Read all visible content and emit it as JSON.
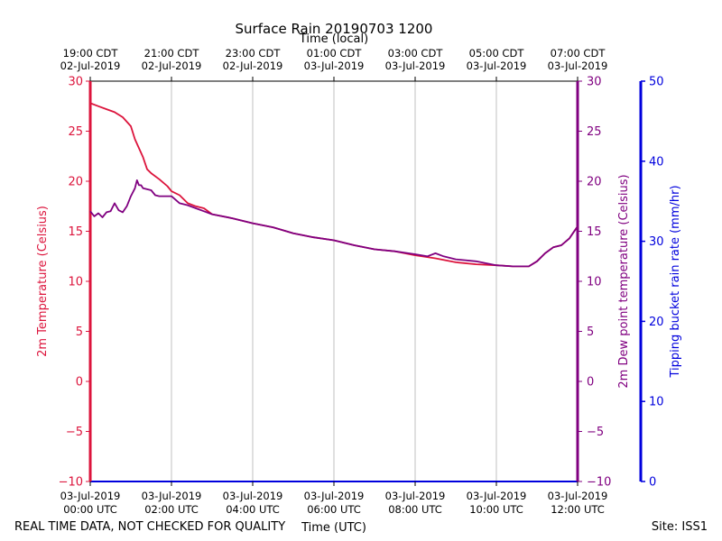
{
  "chart_data": {
    "type": "line",
    "title": "Surface Rain 20190703 1200",
    "top_axis_label": "Time (local)",
    "xlabel": "Time (UTC)",
    "ylabel_left": "2m Temperature (Celsius)",
    "ylabel_right": "2m Dew point temperature (Celsius)",
    "ylabel_far_right": "Tipping bucket rain rate (mm/hr)",
    "footer_left": "REAL TIME DATA, NOT CHECKED FOR QUALITY",
    "footer_right": "Site: ISS1",
    "xlim_hours_utc": [
      0,
      12
    ],
    "ylim_temperature": [
      -10,
      30
    ],
    "ylim_rain": [
      0,
      50
    ],
    "grid": "vertical",
    "x_ticks_utc": [
      {
        "hour": 0,
        "line1": "03-Jul-2019",
        "line2": "00:00 UTC"
      },
      {
        "hour": 2,
        "line1": "03-Jul-2019",
        "line2": "02:00 UTC"
      },
      {
        "hour": 4,
        "line1": "03-Jul-2019",
        "line2": "04:00 UTC"
      },
      {
        "hour": 6,
        "line1": "03-Jul-2019",
        "line2": "06:00 UTC"
      },
      {
        "hour": 8,
        "line1": "03-Jul-2019",
        "line2": "08:00 UTC"
      },
      {
        "hour": 10,
        "line1": "03-Jul-2019",
        "line2": "10:00 UTC"
      },
      {
        "hour": 12,
        "line1": "03-Jul-2019",
        "line2": "12:00 UTC"
      }
    ],
    "x_ticks_local": [
      {
        "hour": 0,
        "line1": "19:00 CDT",
        "line2": "02-Jul-2019"
      },
      {
        "hour": 2,
        "line1": "21:00 CDT",
        "line2": "02-Jul-2019"
      },
      {
        "hour": 4,
        "line1": "23:00 CDT",
        "line2": "02-Jul-2019"
      },
      {
        "hour": 6,
        "line1": "01:00 CDT",
        "line2": "03-Jul-2019"
      },
      {
        "hour": 8,
        "line1": "03:00 CDT",
        "line2": "03-Jul-2019"
      },
      {
        "hour": 10,
        "line1": "05:00 CDT",
        "line2": "03-Jul-2019"
      },
      {
        "hour": 12,
        "line1": "07:00 CDT",
        "line2": "03-Jul-2019"
      }
    ],
    "y_ticks_temperature": [
      30,
      25,
      20,
      15,
      10,
      5,
      0,
      -5,
      -10
    ],
    "y_ticks_rain": [
      50,
      40,
      30,
      20,
      10,
      0
    ],
    "colors": {
      "temperature": "#dc143c",
      "dewpoint": "#800080",
      "rain": "#0000dd"
    },
    "series": [
      {
        "key": "temperature",
        "x": [
          0,
          0.2,
          0.4,
          0.6,
          0.8,
          1.0,
          1.1,
          1.2,
          1.3,
          1.4,
          1.5,
          1.7,
          1.9,
          2.0,
          2.2,
          2.4,
          2.6,
          2.8,
          3.0,
          3.5,
          4.0,
          4.5,
          5.0,
          5.5,
          6.0,
          6.5,
          7.0,
          7.5,
          8.0,
          8.5,
          9.0,
          9.5,
          10.0,
          10.4,
          10.6,
          10.8,
          11.0,
          11.2,
          11.4,
          11.6,
          11.8,
          12.0
        ],
        "values": [
          27.8,
          27.5,
          27.2,
          26.9,
          26.4,
          25.5,
          24.2,
          23.3,
          22.4,
          21.2,
          20.8,
          20.2,
          19.5,
          19.0,
          18.6,
          17.8,
          17.5,
          17.3,
          16.7,
          16.3,
          15.8,
          15.4,
          14.8,
          14.4,
          14.1,
          13.6,
          13.2,
          13.0,
          12.6,
          12.3,
          11.9,
          11.7,
          11.6,
          11.5,
          11.5,
          11.5,
          12.0,
          12.8,
          13.4,
          13.6,
          14.3,
          15.5
        ]
      },
      {
        "key": "dewpoint",
        "x": [
          0,
          0.1,
          0.2,
          0.3,
          0.4,
          0.5,
          0.6,
          0.7,
          0.8,
          0.9,
          1.0,
          1.1,
          1.15,
          1.2,
          1.25,
          1.3,
          1.4,
          1.5,
          1.6,
          1.7,
          1.8,
          2.0,
          2.2,
          2.4,
          2.6,
          2.8,
          3.0,
          3.5,
          4.0,
          4.5,
          5.0,
          5.5,
          6.0,
          6.5,
          7.0,
          7.5,
          8.0,
          8.3,
          8.5,
          8.7,
          9.0,
          9.5,
          10.0,
          10.4,
          10.6,
          10.8,
          11.0,
          11.2,
          11.4,
          11.6,
          11.8,
          12.0
        ],
        "values": [
          17.0,
          16.5,
          16.8,
          16.4,
          16.9,
          17.0,
          17.8,
          17.1,
          16.9,
          17.5,
          18.5,
          19.3,
          20.1,
          19.6,
          19.6,
          19.3,
          19.2,
          19.1,
          18.6,
          18.5,
          18.5,
          18.5,
          17.8,
          17.6,
          17.3,
          17.0,
          16.7,
          16.3,
          15.8,
          15.4,
          14.8,
          14.4,
          14.1,
          13.6,
          13.2,
          13.0,
          12.7,
          12.5,
          12.8,
          12.5,
          12.2,
          12.0,
          11.6,
          11.5,
          11.5,
          11.5,
          12.0,
          12.8,
          13.4,
          13.6,
          14.3,
          15.5
        ]
      }
    ]
  }
}
